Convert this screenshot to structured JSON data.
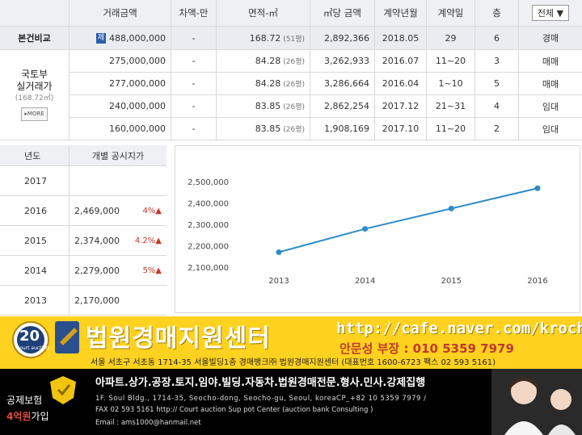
{
  "table": {
    "headers": [
      "거래금액",
      "차액-만",
      "면적-㎡",
      "㎡당 금액",
      "계약년월",
      "계약일",
      "층"
    ],
    "filter_label": "전체 ▼",
    "subject": {
      "label": "본건비교",
      "badge": "제",
      "price": "488,000,000",
      "diff": "-",
      "area": "168.72",
      "area_unit": "(51평)",
      "unit_price": "2,892,366",
      "ym": "2018.05",
      "day": "29",
      "floor": "6",
      "type": "경매"
    },
    "side_label_1": "국토부",
    "side_label_2": "실거래가",
    "side_label_3": "(168.72㎡)",
    "more_label": "▸MORE",
    "rows": [
      {
        "price": "275,000,000",
        "diff": "-",
        "area": "84.28",
        "area_unit": "(26평)",
        "unit_price": "3,262,933",
        "ym": "2016.07",
        "day": "11~20",
        "floor": "3",
        "type": "매매"
      },
      {
        "price": "277,000,000",
        "diff": "-",
        "area": "84.28",
        "area_unit": "(26평)",
        "unit_price": "3,286,664",
        "ym": "2016.04",
        "day": "1~10",
        "floor": "5",
        "type": "매매"
      },
      {
        "price": "240,000,000",
        "diff": "-",
        "area": "83.85",
        "area_unit": "(26평)",
        "unit_price": "2,862,254",
        "ym": "2017.12",
        "day": "21~31",
        "floor": "4",
        "type": "임대"
      },
      {
        "price": "160,000,000",
        "diff": "-",
        "area": "83.85",
        "area_unit": "(26평)",
        "unit_price": "1,908,169",
        "ym": "2017.10",
        "day": "11~20",
        "floor": "2",
        "type": "임대"
      }
    ]
  },
  "land": {
    "header_year": "년도",
    "header_price": "개별 공시지가",
    "rows": [
      {
        "year": "2017",
        "price": "",
        "pct": ""
      },
      {
        "year": "2016",
        "price": "2,469,000",
        "pct": "4%▲"
      },
      {
        "year": "2015",
        "price": "2,374,000",
        "pct": "4.2%▲"
      },
      {
        "year": "2014",
        "price": "2,279,000",
        "pct": "5%▲"
      },
      {
        "year": "2013",
        "price": "2,170,000",
        "pct": ""
      }
    ]
  },
  "chart_data": {
    "type": "line",
    "x": [
      "2013",
      "2014",
      "2015",
      "2016"
    ],
    "series": [
      {
        "values": [
          2170000,
          2279000,
          2374000,
          2469000
        ]
      }
    ],
    "yticks": [
      "2,100,000",
      "2,200,000",
      "2,300,000",
      "2,400,000",
      "2,500,000"
    ],
    "ylim": [
      2100000,
      2500000
    ],
    "grid": false,
    "color": "#2e8bc9"
  },
  "banner": {
    "badge_num": "20",
    "badge_sub": "Court auction",
    "title": "법원경매지원센터",
    "url": "http://cafe.naver.com/krocha",
    "contact": "안문성 부장 : 010 5359 7979",
    "address": "서울 서초구 서초동 1714-35 서울빌딩1층 경매뱅크㈜ 법원경매지원센터 (대표번호 1600-6723 팩스 02 593 5161)"
  },
  "footer": {
    "insurance_1": "공제보험",
    "insurance_amount": "4억원",
    "insurance_2": "가입",
    "services": "아파트.상가.공장.토지.임야.빌딩.자동차.법원경매전문.형사.민사.강제집행",
    "eng_line1": "1F. Soul Bldg., 1714-35, Seocho-dong, Seocho-gu, Seoul, koreaCP_+82 10 5359 7979 /",
    "eng_line2": "FAX 02 593 5161  http:// Court auction Sup pot Center (auction bank Consulting )",
    "email": "Email : ams1000@hanmail.net"
  },
  "colors": {
    "banner_bg": "#ffd21f",
    "title_color": "#ffffff",
    "url_color": "#ffffff",
    "contact_color": "#c0392b"
  }
}
